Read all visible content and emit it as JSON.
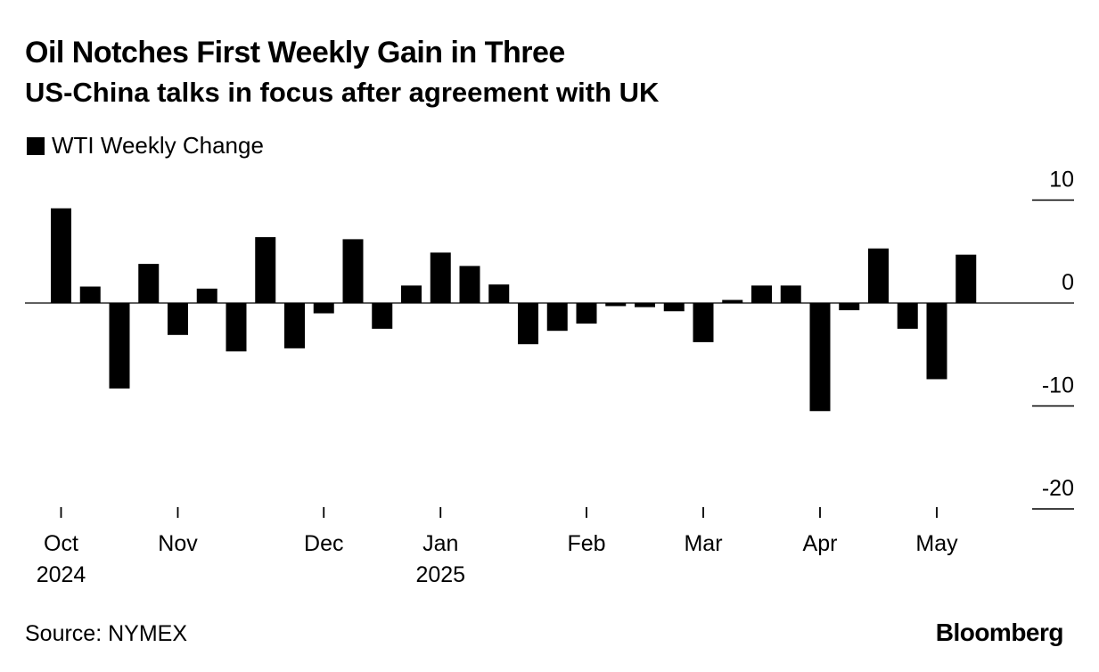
{
  "chart_data": {
    "type": "bar",
    "title": "Oil Notches First Weekly Gain in Three",
    "subtitle": "US-China talks in focus after agreement with UK",
    "legend": "WTI Weekly Change",
    "legend_position": "top-left",
    "ylim": [
      -20,
      10
    ],
    "yticks": [
      {
        "value": 10,
        "label": "10"
      },
      {
        "value": 0,
        "label": "0"
      },
      {
        "value": -10,
        "label": "-10"
      },
      {
        "value": -20,
        "label": "-20"
      }
    ],
    "values": [
      9.2,
      1.6,
      -8.3,
      3.8,
      -3.1,
      1.4,
      -4.7,
      6.4,
      -4.4,
      -1.0,
      6.2,
      -2.5,
      1.7,
      4.9,
      3.6,
      1.8,
      -4.0,
      -2.7,
      -2.0,
      -0.3,
      -0.4,
      -0.8,
      -3.8,
      0.3,
      1.7,
      1.7,
      -10.5,
      -0.7,
      5.3,
      -2.5,
      -7.4,
      4.7
    ],
    "xticks": [
      {
        "index": 0,
        "label": "Oct",
        "sublabel": "2024"
      },
      {
        "index": 4,
        "label": "Nov",
        "sublabel": ""
      },
      {
        "index": 9,
        "label": "Dec",
        "sublabel": ""
      },
      {
        "index": 13,
        "label": "Jan",
        "sublabel": "2025"
      },
      {
        "index": 18,
        "label": "Feb",
        "sublabel": ""
      },
      {
        "index": 22,
        "label": "Mar",
        "sublabel": ""
      },
      {
        "index": 26,
        "label": "Apr",
        "sublabel": ""
      },
      {
        "index": 30,
        "label": "May",
        "sublabel": ""
      }
    ],
    "source": "Source: NYMEX",
    "brand": "Bloomberg"
  },
  "colors": {
    "bar": "#000000",
    "text": "#000000",
    "background": "#ffffff"
  }
}
